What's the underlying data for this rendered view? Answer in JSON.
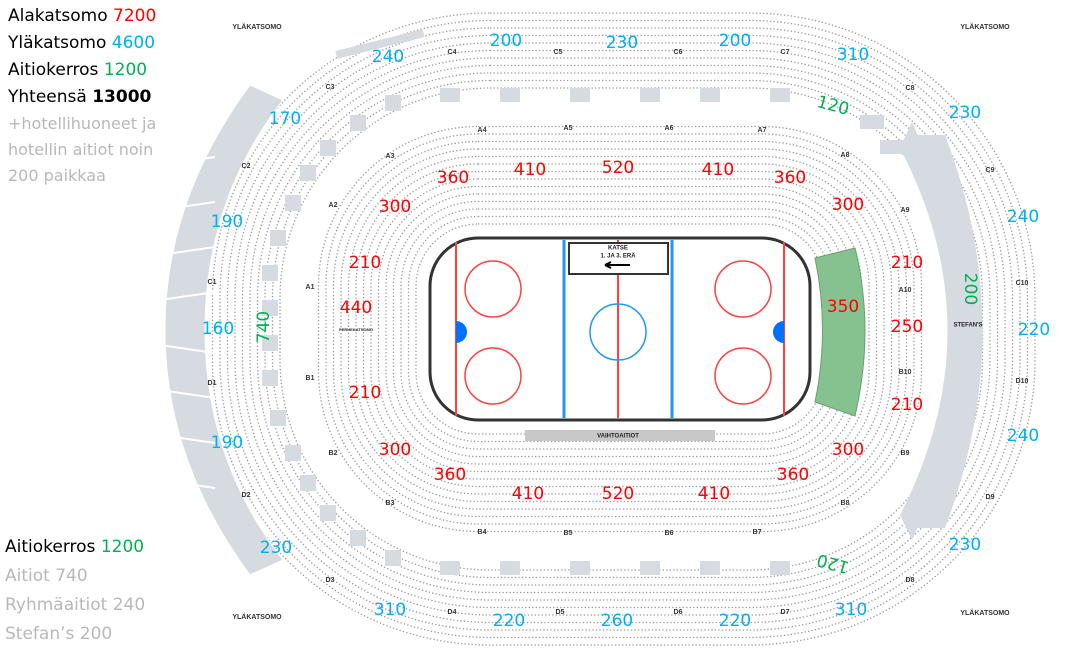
{
  "legend_top": {
    "lines": [
      {
        "label": "Alakatsomo",
        "value": "7200",
        "color": "#ff0000"
      },
      {
        "label": "Yläkatsomo",
        "value": "4600",
        "color": "#00b0f0"
      },
      {
        "label": "Aitiokerros",
        "value": "1200",
        "color": "#00b050"
      },
      {
        "label": "Yhteensä",
        "value": "13000",
        "color": "#000000"
      }
    ],
    "note_lines": [
      "+hotellihuoneet ja",
      "hotellin aitiot noin",
      "200 paikkaa"
    ]
  },
  "legend_bottom": {
    "title": {
      "label": "Aitiokerros",
      "value": "1200"
    },
    "lines": [
      "Aitiot 740",
      "Ryhmäaitiot 240",
      "Stefan’s 200"
    ]
  },
  "rink": {
    "sign_line1": "KATSE",
    "sign_line2": "1. JA 3. ERÄ",
    "bench_label": "VAIHTOAITIOT",
    "colors": {
      "red_line": "#ff4040",
      "blue_line": "#2196f3",
      "board": "#333333",
      "green_area": "#86c28f"
    }
  },
  "area_labels": {
    "upper": "YLÄKATSOMO",
    "stefans": "STEFAN'S",
    "family": "PERHEKATSOMO"
  },
  "capacities": [
    {
      "value": "360",
      "tier": "lower"
    },
    {
      "value": "410",
      "tier": "lower"
    },
    {
      "value": "520",
      "tier": "lower"
    },
    {
      "value": "410",
      "tier": "lower"
    },
    {
      "value": "360",
      "tier": "lower"
    },
    {
      "value": "300",
      "tier": "lower"
    },
    {
      "value": "300",
      "tier": "lower"
    },
    {
      "value": "210",
      "tier": "lower"
    },
    {
      "value": "440",
      "tier": "lower"
    },
    {
      "value": "210",
      "tier": "lower"
    },
    {
      "value": "350",
      "tier": "lower"
    },
    {
      "value": "250",
      "tier": "lower"
    },
    {
      "value": "210",
      "tier": "lower"
    },
    {
      "value": "210",
      "tier": "lower"
    },
    {
      "value": "300",
      "tier": "lower"
    },
    {
      "value": "300",
      "tier": "lower"
    },
    {
      "value": "360",
      "tier": "lower"
    },
    {
      "value": "410",
      "tier": "lower"
    },
    {
      "value": "520",
      "tier": "lower"
    },
    {
      "value": "410",
      "tier": "lower"
    },
    {
      "value": "360",
      "tier": "lower"
    },
    {
      "value": "240",
      "tier": "upper"
    },
    {
      "value": "200",
      "tier": "upper"
    },
    {
      "value": "230",
      "tier": "upper"
    },
    {
      "value": "200",
      "tier": "upper"
    },
    {
      "value": "310",
      "tier": "upper"
    },
    {
      "value": "170",
      "tier": "upper"
    },
    {
      "value": "230",
      "tier": "upper"
    },
    {
      "value": "190",
      "tier": "upper"
    },
    {
      "value": "240",
      "tier": "upper"
    },
    {
      "value": "160",
      "tier": "upper"
    },
    {
      "value": "220",
      "tier": "upper"
    },
    {
      "value": "190",
      "tier": "upper"
    },
    {
      "value": "240",
      "tier": "upper"
    },
    {
      "value": "230",
      "tier": "upper"
    },
    {
      "value": "230",
      "tier": "upper"
    },
    {
      "value": "310",
      "tier": "upper"
    },
    {
      "value": "220",
      "tier": "upper"
    },
    {
      "value": "260",
      "tier": "upper"
    },
    {
      "value": "220",
      "tier": "upper"
    },
    {
      "value": "310",
      "tier": "upper"
    },
    {
      "value": "120",
      "tier": "box"
    },
    {
      "value": "120",
      "tier": "box"
    },
    {
      "value": "740",
      "tier": "box"
    },
    {
      "value": "200",
      "tier": "box"
    }
  ],
  "tier_colors": {
    "lower": "#ff0000",
    "upper": "#00b0f0",
    "box": "#00b050"
  },
  "sections": [
    "A1",
    "A2",
    "A3",
    "A4",
    "A5",
    "A6",
    "A7",
    "A8",
    "A9",
    "A10",
    "B1",
    "B2",
    "B3",
    "B4",
    "B5",
    "B6",
    "B7",
    "B8",
    "B9",
    "B10",
    "C1",
    "C2",
    "C3",
    "C4",
    "C5",
    "C6",
    "C7",
    "C8",
    "C9",
    "C10",
    "D1",
    "D2",
    "D3",
    "D4",
    "D5",
    "D6",
    "D7",
    "D8",
    "D9",
    "D10"
  ]
}
